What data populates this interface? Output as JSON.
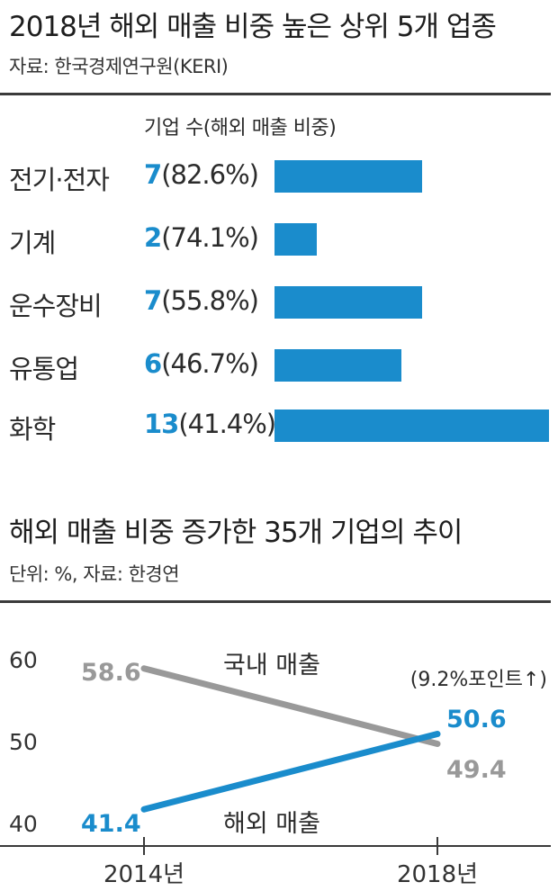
{
  "chart_data": [
    {
      "type": "bar",
      "title": "2018년 해외 매출 비중 높은 상위 5개 업종",
      "source": "자료: 한국경제연구원(KERI)",
      "column_header": "기업 수(해외 매출 비중)",
      "categories": [
        "전기·전자",
        "기계",
        "운수장비",
        "유통업",
        "화학"
      ],
      "counts": [
        7,
        2,
        7,
        6,
        13
      ],
      "counts_label": [
        "7",
        "2",
        "7",
        "6",
        "13"
      ],
      "shares_label": [
        "(82.6%)",
        "(74.1%)",
        "(55.8%)",
        "(46.7%)",
        "(41.4%)"
      ],
      "shares": [
        82.6,
        74.1,
        55.8,
        46.7,
        41.4
      ],
      "bar_color": "#1a8ccc"
    },
    {
      "type": "line",
      "title": "해외 매출 비중 증가한 35개 기업의 추이",
      "source": "단위: %, 자료: 한경연",
      "x": [
        "2014년",
        "2018년"
      ],
      "yticks": [
        "60",
        "50",
        "40"
      ],
      "ylim": [
        40,
        60
      ],
      "series": [
        {
          "name": "국내 매출",
          "values": [
            58.6,
            49.4
          ],
          "labels": [
            "58.6",
            "49.4"
          ],
          "color": "#999999"
        },
        {
          "name": "해외 매출",
          "values": [
            41.4,
            50.6
          ],
          "labels": [
            "41.4",
            "50.6"
          ],
          "color": "#1a8ccc"
        }
      ],
      "annotation": "(9.2%포인트↑)"
    }
  ]
}
